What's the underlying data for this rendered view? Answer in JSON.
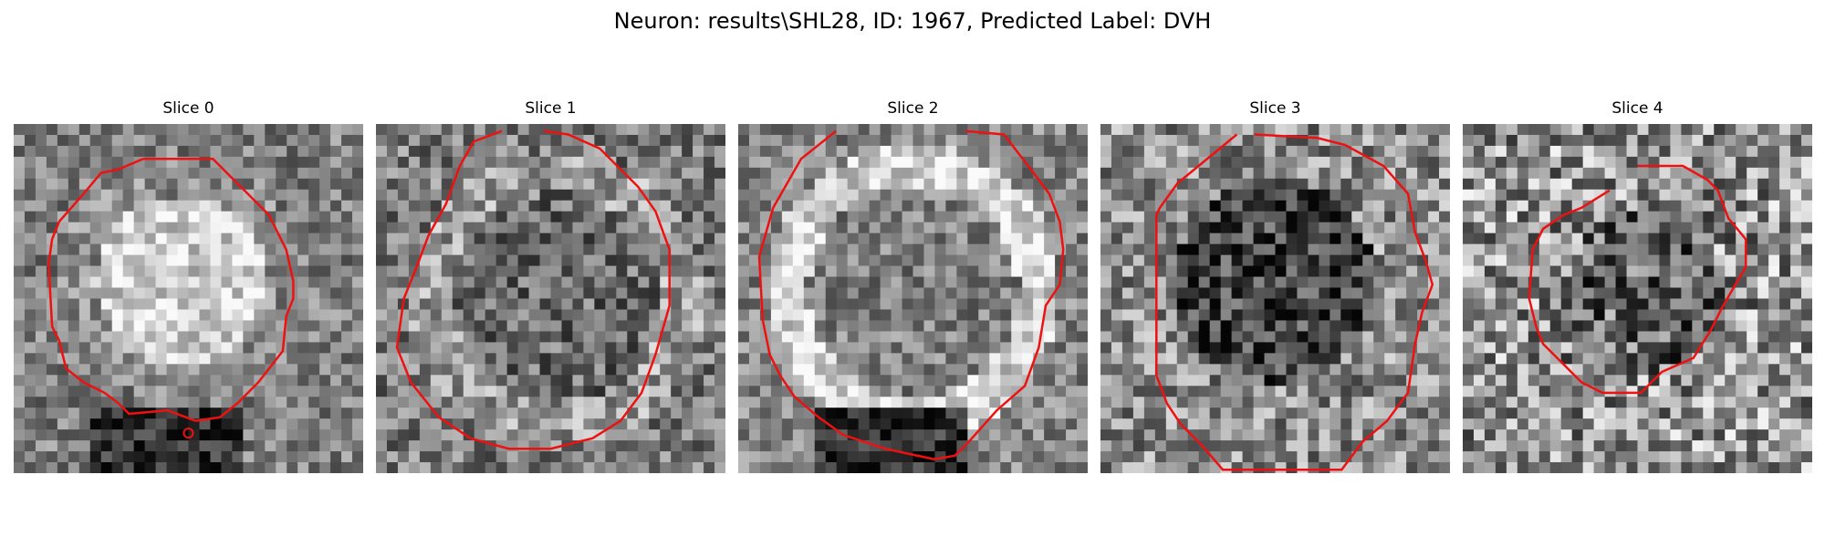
{
  "figure": {
    "suptitle": "Neuron: results\\SHL28, ID: 1967, Predicted Label: DVH"
  },
  "contour_color": "#ee1111",
  "panels": [
    {
      "title": "Slice 0",
      "description": "bright round soma with darker surroundings, contour enclosing it, small marker circle below"
    },
    {
      "title": "Slice 1",
      "description": "medium-gray textured soma with darker center, large contour"
    },
    {
      "title": "Slice 2",
      "description": "ring-like bright soma edge with darker center, large contour"
    },
    {
      "title": "Slice 3",
      "description": "dark center, noisy texture, tall contour"
    },
    {
      "title": "Slice 4",
      "description": "high-noise patch with smaller octagonal contour"
    }
  ]
}
